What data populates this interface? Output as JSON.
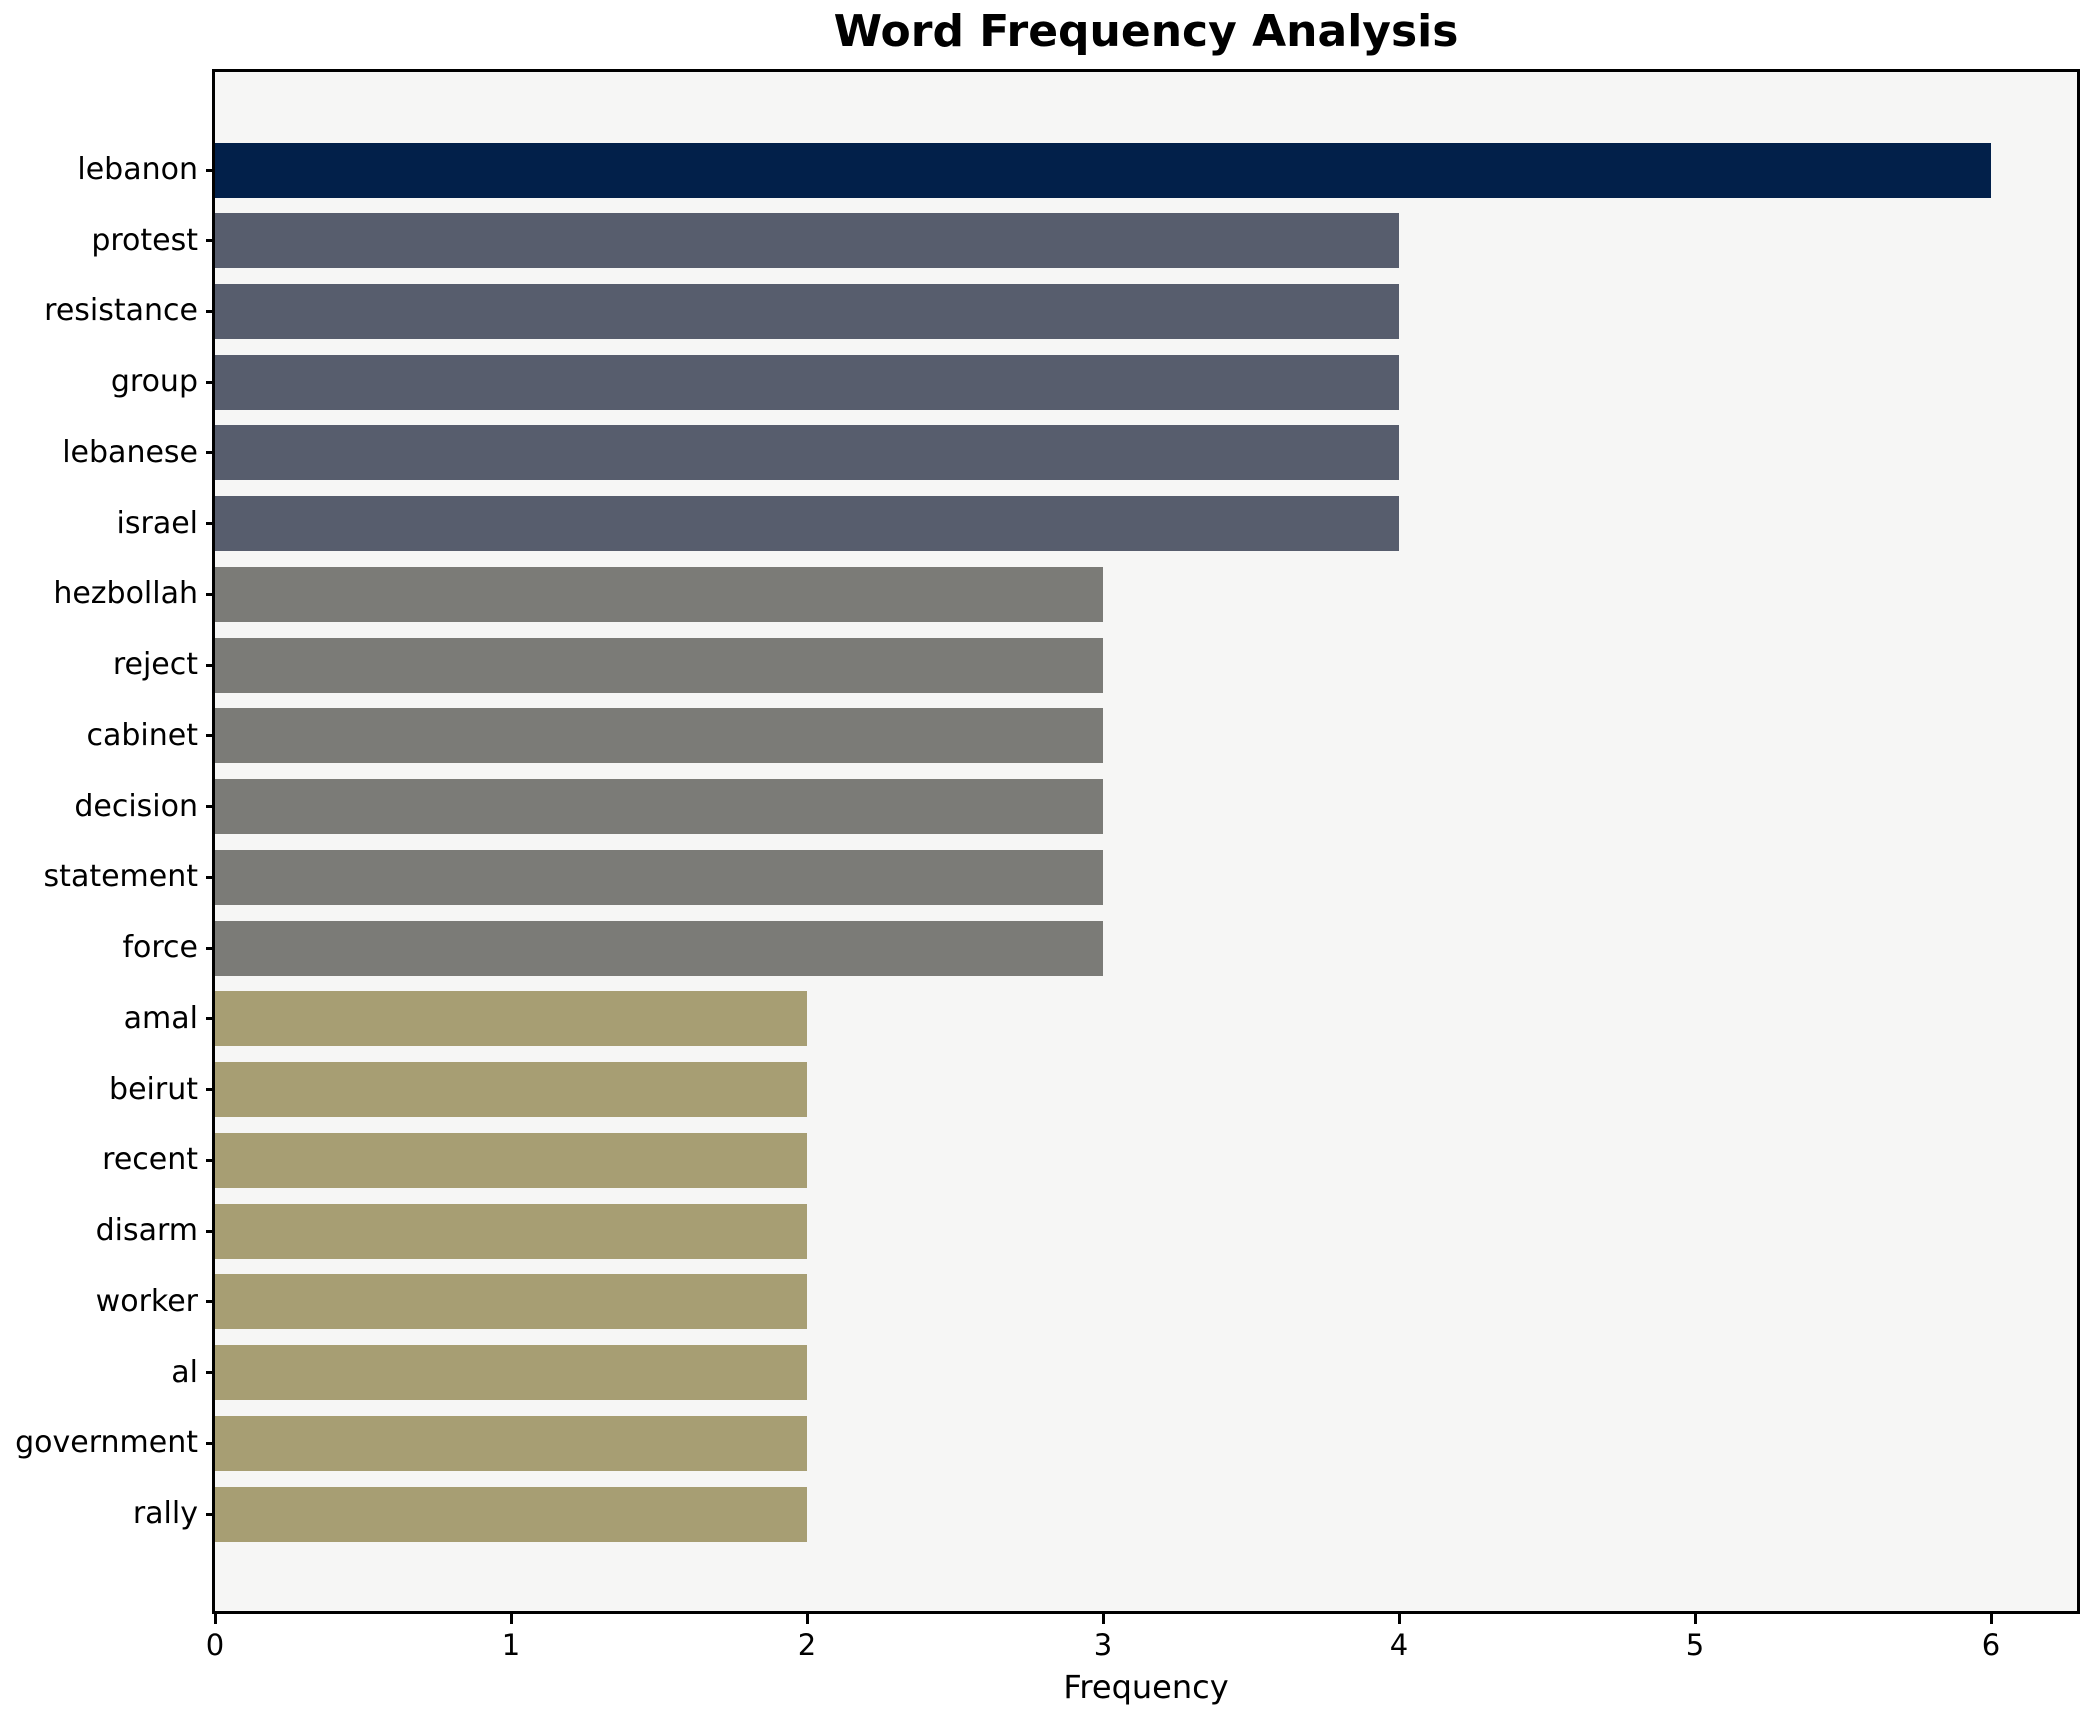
{
  "title": "Word Frequency Analysis",
  "chart_data": {
    "type": "bar",
    "orientation": "horizontal",
    "title": "Word Frequency Analysis",
    "xlabel": "Frequency",
    "ylabel": "",
    "categories": [
      "lebanon",
      "protest",
      "resistance",
      "group",
      "lebanese",
      "israel",
      "hezbollah",
      "reject",
      "cabinet",
      "decision",
      "statement",
      "force",
      "amal",
      "beirut",
      "recent",
      "disarm",
      "worker",
      "al",
      "government",
      "rally"
    ],
    "values": [
      6,
      4,
      4,
      4,
      4,
      4,
      3,
      3,
      3,
      3,
      3,
      3,
      2,
      2,
      2,
      2,
      2,
      2,
      2,
      2
    ],
    "bar_colors": [
      "#02204a",
      "#575d6d",
      "#575d6d",
      "#575d6d",
      "#575d6d",
      "#575d6d",
      "#7b7b77",
      "#7b7b77",
      "#7b7b77",
      "#7b7b77",
      "#7b7b77",
      "#7b7b77",
      "#a79e73",
      "#a79e73",
      "#a79e73",
      "#a79e73",
      "#a79e73",
      "#a79e73",
      "#a79e73",
      "#a79e73"
    ],
    "xticks": [
      0,
      1,
      2,
      3,
      4,
      5,
      6
    ],
    "xlim": [
      0,
      6.29
    ],
    "grid": false,
    "legend": "none",
    "plot_background": "#f6f6f5",
    "figure_background": "#ffffff",
    "spine_color": "#000000"
  }
}
